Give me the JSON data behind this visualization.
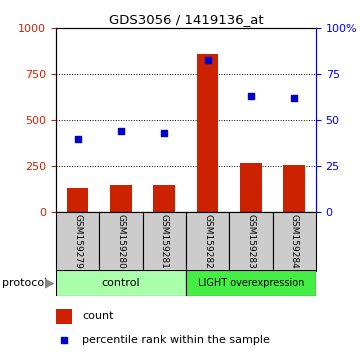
{
  "title": "GDS3056 / 1419136_at",
  "samples": [
    "GSM159279",
    "GSM159280",
    "GSM159281",
    "GSM159282",
    "GSM159283",
    "GSM159284"
  ],
  "counts": [
    130,
    148,
    148,
    860,
    270,
    260
  ],
  "percentiles": [
    40,
    44,
    43,
    83,
    63,
    62
  ],
  "ylim_left": [
    0,
    1000
  ],
  "ylim_right": [
    0,
    100
  ],
  "yticks_left": [
    0,
    250,
    500,
    750,
    1000
  ],
  "yticks_right": [
    0,
    25,
    50,
    75,
    100
  ],
  "ytick_right_labels": [
    "0",
    "25",
    "50",
    "75",
    "100%"
  ],
  "bar_color": "#cc2200",
  "scatter_color": "#0000cc",
  "control_color": "#aaffaa",
  "light_color": "#44ee44",
  "sample_bg_color": "#cccccc",
  "control_label": "control",
  "light_label": "LIGHT overexpression",
  "protocol_label": "protocol",
  "legend_count": "count",
  "legend_pct": "percentile rank within the sample",
  "n_control": 3,
  "n_light": 3
}
